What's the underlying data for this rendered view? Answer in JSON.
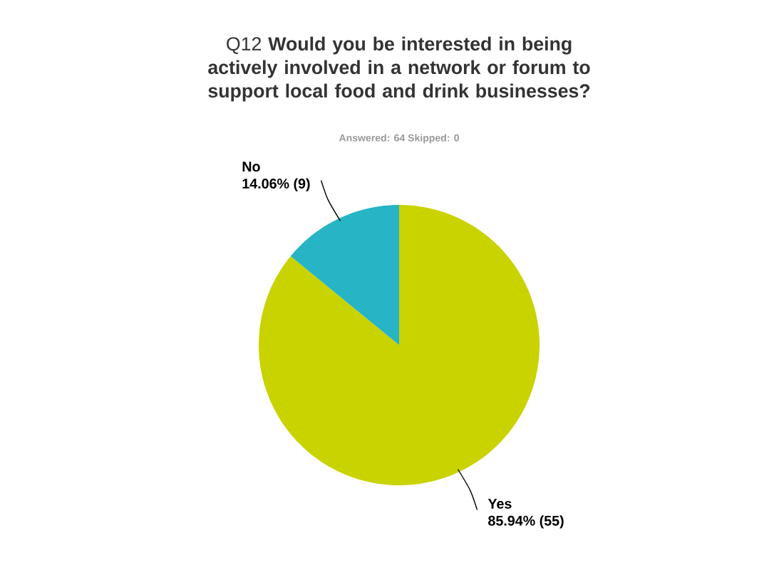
{
  "chart_data": {
    "type": "pie",
    "title": "Q12 **Would you be interested in being actively involved in a network or forum to support local food and drink businesses?**",
    "subtitle": "Answered: 64    Skipped: 0",
    "categories": [
      "Yes",
      "No"
    ],
    "values": [
      85.94,
      14.06
    ],
    "value_labels": [
      "85.94% (55)",
      "14.06% (9)"
    ],
    "colors": [
      "#c9d300",
      "#27b4c4"
    ]
  }
}
